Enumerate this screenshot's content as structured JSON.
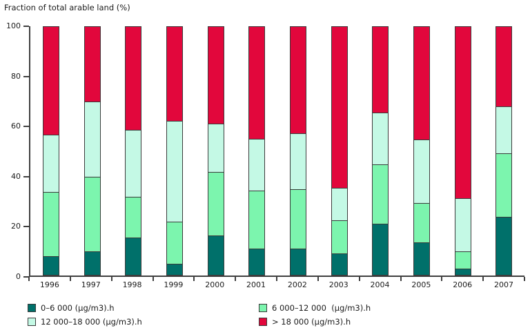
{
  "chart_data": {
    "type": "bar",
    "stacked": true,
    "title": "Fraction of total arable land (%)",
    "xlabel": "",
    "ylabel": "Fraction of total arable land (%)",
    "categories": [
      "1996",
      "1997",
      "1998",
      "1999",
      "2000",
      "2001",
      "2002",
      "2003",
      "2004",
      "2005",
      "2006",
      "2007"
    ],
    "series": [
      {
        "name": "0–6 000 (µg/m3).h",
        "color": "#00706A",
        "values": [
          7.5,
          9.5,
          15.0,
          4.5,
          16.0,
          10.5,
          10.5,
          8.5,
          20.5,
          13.0,
          2.5,
          23.5
        ]
      },
      {
        "name": "6 000–12 000  (µg/m3).h",
        "color": "#7CF5AE",
        "values": [
          26.0,
          30.0,
          16.5,
          17.0,
          25.5,
          23.5,
          24.0,
          13.5,
          24.0,
          16.0,
          7.0,
          25.5
        ]
      },
      {
        "name": "12 000–18 000 (µg/m3).h",
        "color": "#C4F9E5",
        "values": [
          23.0,
          30.5,
          27.0,
          40.5,
          19.5,
          21.0,
          22.5,
          13.0,
          21.0,
          25.5,
          21.5,
          19.0
        ]
      },
      {
        "name": "> 18 000 (µg/m3).h",
        "color": "#E2073C",
        "values": [
          43.5,
          30.0,
          41.5,
          38.0,
          39.0,
          45.0,
          43.0,
          65.0,
          34.5,
          45.5,
          69.0,
          32.0
        ]
      }
    ],
    "ylim": [
      0,
      100
    ],
    "yticks": [
      0,
      20,
      40,
      60,
      80,
      100
    ],
    "grid": false,
    "legend_position": "bottom",
    "axis_color": "#3f3f3f",
    "outline_color": "#3a3a3a"
  }
}
